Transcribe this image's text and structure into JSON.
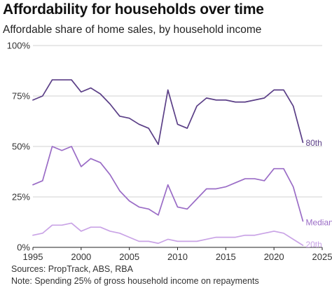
{
  "title": "Affordability for households over time",
  "subtitle": "Affordable share of home sales, by household income",
  "sources": [
    "Sources: PropTrack, ABS, RBA",
    "Note: Spending 25% of gross household income on repayments"
  ],
  "chart_data": {
    "type": "line",
    "title": "Affordability for households over time",
    "subtitle": "Affordable share of home sales, by household income",
    "xlabel": "",
    "ylabel": "",
    "xlim": [
      1995,
      2025
    ],
    "ylim": [
      0,
      100
    ],
    "x_ticks": [
      1995,
      2000,
      2005,
      2010,
      2015,
      2020,
      2025
    ],
    "y_ticks": [
      0,
      25,
      50,
      75,
      100
    ],
    "y_tick_labels": [
      "0%",
      "25%",
      "50%",
      "75%",
      "100%"
    ],
    "grid": "horizontal",
    "legend": "inline labels at line ends",
    "x": [
      1995,
      1996,
      1997,
      1998,
      1999,
      2000,
      2001,
      2002,
      2003,
      2004,
      2005,
      2006,
      2007,
      2008,
      2009,
      2010,
      2011,
      2012,
      2013,
      2014,
      2015,
      2016,
      2017,
      2018,
      2019,
      2020,
      2021,
      2022,
      2023
    ],
    "series": [
      {
        "name": "80th",
        "color": "#5b3f87",
        "values": [
          73,
          75,
          83,
          83,
          83,
          77,
          79,
          76,
          71,
          65,
          64,
          61,
          59,
          51,
          78,
          61,
          59,
          70,
          74,
          73,
          73,
          72,
          72,
          73,
          74,
          78,
          78,
          70,
          52
        ]
      },
      {
        "name": "Median",
        "color": "#9a6cc6",
        "values": [
          31,
          33,
          50,
          48,
          50,
          40,
          44,
          42,
          36,
          28,
          23,
          20,
          19,
          16,
          31,
          20,
          19,
          24,
          29,
          29,
          30,
          32,
          34,
          34,
          33,
          39,
          39,
          30,
          13
        ]
      },
      {
        "name": "20th",
        "color": "#c9a3e6",
        "values": [
          6,
          7,
          11,
          11,
          12,
          8,
          10,
          10,
          8,
          7,
          5,
          3,
          3,
          2,
          4,
          3,
          3,
          3,
          4,
          5,
          5,
          5,
          6,
          6,
          7,
          8,
          7,
          4,
          1
        ]
      }
    ]
  }
}
